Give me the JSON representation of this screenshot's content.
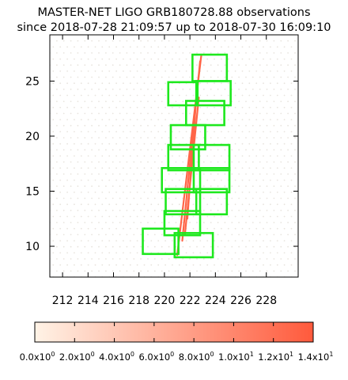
{
  "chart_data": {
    "type": "scatter",
    "title": "MASTER-NET LIGO GRB180728.88 observations",
    "subtitle": "since 2018-07-28 21:09:57 up to 2018-07-30 16:09:10",
    "xlabel": "",
    "ylabel": "",
    "xlim": [
      211,
      230.5
    ],
    "ylim": [
      7.2,
      29.2
    ],
    "x_ticks": [
      "212",
      "214",
      "216",
      "218",
      "220",
      "222",
      "224",
      "226",
      "228"
    ],
    "y_ticks": [
      "10",
      "15",
      "20",
      "25"
    ],
    "grid": false,
    "probability_band": {
      "color_value": 13,
      "segments": [
        {
          "x": [
            222.9,
            221.0
          ],
          "y": [
            27.4,
            9.2
          ]
        },
        {
          "x": [
            222.8,
            221.4
          ],
          "y": [
            26.8,
            10.5
          ]
        },
        {
          "x": [
            222.6,
            221.8
          ],
          "y": [
            25.0,
            12.5
          ]
        },
        {
          "x": [
            222.7,
            221.6
          ],
          "y": [
            23.5,
            11.0
          ]
        }
      ]
    },
    "fields": [
      {
        "x": [
          222.2,
          224.9
        ],
        "y": [
          25.0,
          27.4
        ]
      },
      {
        "x": [
          220.3,
          222.6
        ],
        "y": [
          22.8,
          24.9
        ]
      },
      {
        "x": [
          222.5,
          225.2
        ],
        "y": [
          22.8,
          25.0
        ]
      },
      {
        "x": [
          221.7,
          224.7
        ],
        "y": [
          21.0,
          23.2
        ]
      },
      {
        "x": [
          220.5,
          223.2
        ],
        "y": [
          18.8,
          21.0
        ]
      },
      {
        "x": [
          220.3,
          222.7
        ],
        "y": [
          16.9,
          19.2
        ]
      },
      {
        "x": [
          222.3,
          225.1
        ],
        "y": [
          16.9,
          19.2
        ]
      },
      {
        "x": [
          219.8,
          222.8
        ],
        "y": [
          14.9,
          17.1
        ]
      },
      {
        "x": [
          222.3,
          225.1
        ],
        "y": [
          14.9,
          17.1
        ]
      },
      {
        "x": [
          220.1,
          222.8
        ],
        "y": [
          12.9,
          15.2
        ]
      },
      {
        "x": [
          222.5,
          224.9
        ],
        "y": [
          12.9,
          15.2
        ]
      },
      {
        "x": [
          220.0,
          222.8
        ],
        "y": [
          11.0,
          13.2
        ]
      },
      {
        "x": [
          218.3,
          221.1
        ],
        "y": [
          9.3,
          11.6
        ]
      },
      {
        "x": [
          220.8,
          223.8
        ],
        "y": [
          9.0,
          11.2
        ]
      }
    ],
    "colorbar": {
      "min": 0,
      "max": 14,
      "color_low": "#fff3e6",
      "color_high": "#ff5a3c",
      "tick_mantissas": [
        "0.0x10",
        "2.0x10",
        "4.0x10",
        "6.0x10",
        "8.0x10",
        "1.0x10",
        "1.2x10",
        "1.4x10"
      ],
      "tick_exponents": [
        "0",
        "0",
        "0",
        "0",
        "0",
        "1",
        "1",
        "1"
      ]
    },
    "colors": {
      "field_outline": "#1ee81e",
      "band": "#ff8c50",
      "background_dots": "#e8e4de"
    }
  }
}
